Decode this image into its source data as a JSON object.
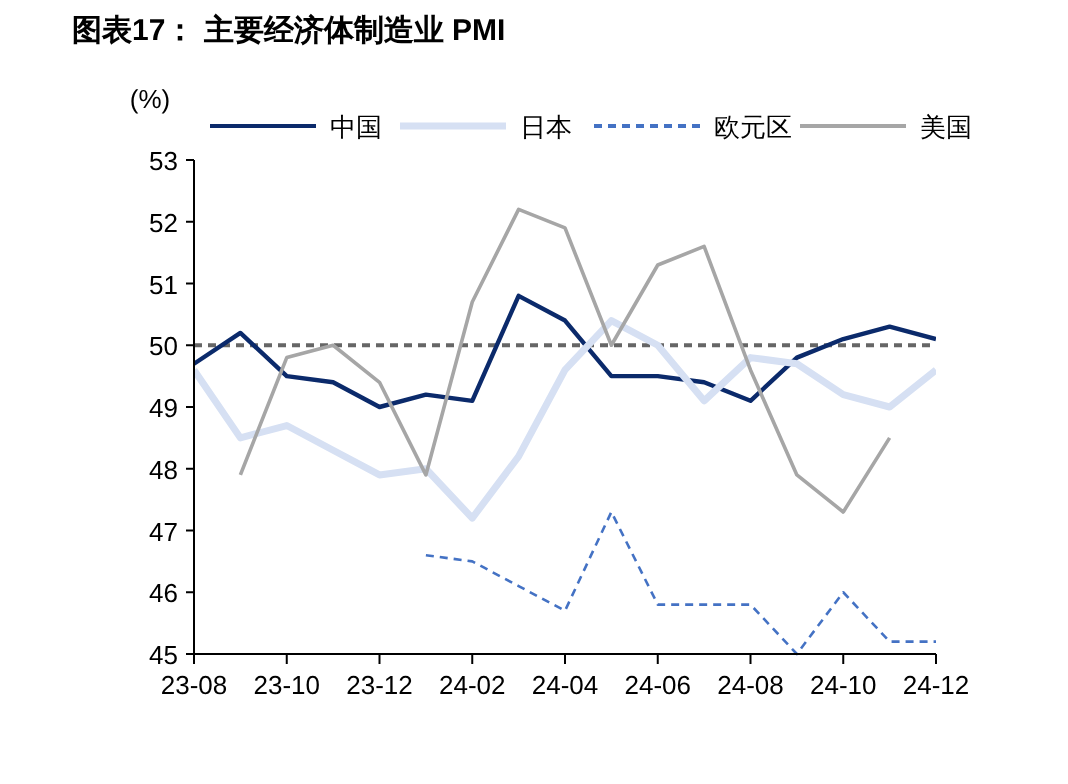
{
  "chart_data": {
    "type": "line",
    "title": "图表17：  主要经济体制造业 PMI",
    "ylabel": "(%)",
    "categories": [
      "23-08",
      null,
      "23-10",
      null,
      "23-12",
      null,
      "24-02",
      null,
      "24-04",
      null,
      "24-06",
      null,
      "24-08",
      null,
      "24-10",
      null,
      "24-12"
    ],
    "series": [
      {
        "name": "中国",
        "color": "#0b2a6b",
        "line_style": "solid",
        "values": [
          49.7,
          50.2,
          49.5,
          49.4,
          49.0,
          49.2,
          49.1,
          50.8,
          50.4,
          49.5,
          49.5,
          49.4,
          49.1,
          49.8,
          50.1,
          50.3,
          50.1
        ]
      },
      {
        "name": "日本",
        "color": "#d6e0f3",
        "line_style": "solid",
        "values": [
          49.6,
          48.5,
          48.7,
          48.3,
          47.9,
          48.0,
          47.2,
          48.2,
          49.6,
          50.4,
          50.0,
          49.1,
          49.8,
          49.7,
          49.2,
          49.0,
          49.6
        ]
      },
      {
        "name": "欧元区",
        "color": "#4472c4",
        "line_style": "dashed",
        "values": [
          null,
          null,
          null,
          null,
          null,
          46.6,
          46.5,
          46.1,
          45.7,
          47.3,
          45.8,
          45.8,
          45.8,
          45.0,
          46.0,
          45.2,
          45.2
        ]
      },
      {
        "name": "美国",
        "color": "#a6a6a6",
        "line_style": "solid",
        "values": [
          null,
          47.9,
          49.8,
          50.0,
          49.4,
          47.9,
          50.7,
          52.2,
          51.9,
          50.0,
          51.3,
          51.6,
          49.6,
          47.9,
          47.3,
          48.5,
          null
        ]
      }
    ],
    "ylim": [
      45,
      53
    ],
    "yticks": [
      45,
      46,
      47,
      48,
      49,
      50,
      51,
      52,
      53
    ],
    "grid": false,
    "legend": "top",
    "marker": "none",
    "ref_lines": [
      {
        "axis": "y",
        "value": 50,
        "label": null,
        "color": "#666666",
        "line_style": "dashed"
      }
    ]
  }
}
